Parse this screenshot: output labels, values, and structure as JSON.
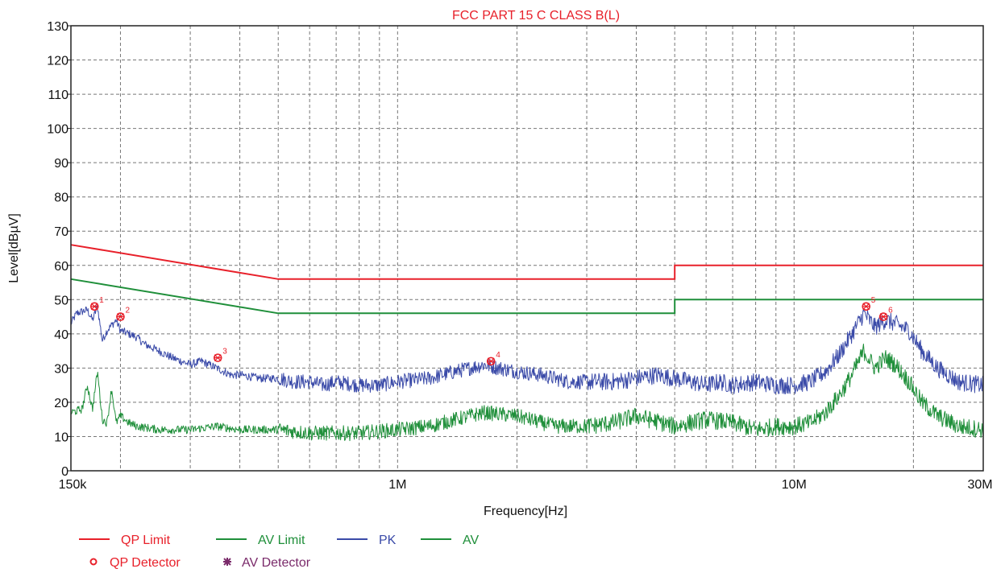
{
  "chart_data": {
    "type": "line",
    "title": "FCC PART 15 C CLASS B(L)",
    "xlabel": "Frequency[Hz]",
    "ylabel": "Level[dBµV]",
    "x_scale": "log",
    "xlim": [
      150000,
      30000000
    ],
    "ylim": [
      0,
      130
    ],
    "y_ticks": [
      0,
      10,
      20,
      30,
      40,
      50,
      60,
      70,
      80,
      90,
      100,
      110,
      120,
      130
    ],
    "x_tick_labels": [
      {
        "value": 150000,
        "label": "150k"
      },
      {
        "value": 1000000,
        "label": "1M"
      },
      {
        "value": 10000000,
        "label": "10M"
      },
      {
        "value": 30000000,
        "label": "30M"
      }
    ],
    "x_grid": [
      200000,
      300000,
      400000,
      500000,
      600000,
      700000,
      800000,
      900000,
      1000000,
      2000000,
      3000000,
      4000000,
      5000000,
      6000000,
      7000000,
      8000000,
      9000000,
      10000000,
      20000000
    ],
    "grid": true,
    "legend_placement": "bottom-left",
    "colors": {
      "qp_limit": "#e8202a",
      "av_limit": "#1f8f3a",
      "pk": "#3a4aa8",
      "av": "#1f8f3a",
      "title": "#e8202a",
      "marker": "#e8202a",
      "av_detector": "#7a2a6a"
    },
    "series": [
      {
        "key": "qp_limit",
        "name": "QP Limit",
        "type": "limit",
        "x": [
          150000,
          500000,
          500000,
          5000000,
          5000000,
          30000000
        ],
        "y": [
          66,
          56,
          56,
          56,
          60,
          60
        ]
      },
      {
        "key": "av_limit",
        "name": "AV Limit",
        "type": "limit",
        "x": [
          150000,
          500000,
          500000,
          5000000,
          5000000,
          30000000
        ],
        "y": [
          56,
          46,
          46,
          46,
          50,
          50
        ]
      },
      {
        "key": "pk",
        "name": "PK",
        "type": "trace",
        "x": [
          150000,
          155000,
          165000,
          170000,
          175000,
          180000,
          185000,
          195000,
          200000,
          210000,
          220000,
          230000,
          250000,
          270000,
          300000,
          320000,
          350000,
          380000,
          400000,
          450000,
          500000,
          550000,
          600000,
          650000,
          700000,
          800000,
          900000,
          1000000,
          1200000,
          1400000,
          1650000,
          1800000,
          2000000,
          2300000,
          2700000,
          3000000,
          3500000,
          4000000,
          4500000,
          5000000,
          5500000,
          6000000,
          6500000,
          7000000,
          8000000,
          9000000,
          10000000,
          11000000,
          12000000,
          13000000,
          14000000,
          15000000,
          16000000,
          17000000,
          18000000,
          19500000,
          21000000,
          23000000,
          26000000,
          30000000
        ],
        "y": [
          43,
          46,
          47,
          44,
          48,
          38,
          41,
          44,
          41,
          40,
          39,
          37,
          35,
          33,
          31,
          32,
          30,
          28,
          28,
          27,
          27,
          26,
          26,
          25,
          26,
          25,
          25,
          26,
          27,
          29,
          31,
          30,
          29,
          28,
          26,
          26,
          26,
          27,
          28,
          27,
          26,
          25,
          26,
          25,
          26,
          25,
          25,
          26,
          29,
          34,
          40,
          46,
          42,
          44,
          43,
          41,
          35,
          30,
          26,
          25
        ]
      },
      {
        "key": "av",
        "name": "AV",
        "type": "trace",
        "x": [
          150000,
          160000,
          165000,
          170000,
          175000,
          180000,
          185000,
          190000,
          195000,
          200000,
          210000,
          220000,
          250000,
          300000,
          350000,
          400000,
          500000,
          600000,
          700000,
          800000,
          1000000,
          1200000,
          1400000,
          1650000,
          2000000,
          2500000,
          3000000,
          3500000,
          4000000,
          5000000,
          6000000,
          7000000,
          8000000,
          9000000,
          10000000,
          11000000,
          12000000,
          13000000,
          14000000,
          15000000,
          16000000,
          17000000,
          18000000,
          19500000,
          21000000,
          23000000,
          26000000,
          30000000
        ],
        "y": [
          17,
          18,
          25,
          18,
          29,
          15,
          14,
          24,
          14,
          16,
          14,
          13,
          12,
          12,
          13,
          12,
          12,
          11,
          11,
          11,
          12,
          13,
          15,
          17,
          16,
          13,
          13,
          14,
          16,
          13,
          15,
          14,
          12,
          13,
          13,
          14,
          17,
          22,
          28,
          35,
          30,
          33,
          31,
          26,
          20,
          16,
          13,
          12
        ]
      }
    ],
    "markers": [
      {
        "label": "1",
        "x": 172000,
        "y": 48
      },
      {
        "label": "2",
        "x": 200000,
        "y": 45
      },
      {
        "label": "3",
        "x": 352000,
        "y": 33
      },
      {
        "label": "4",
        "x": 1720000,
        "y": 32
      },
      {
        "label": "5",
        "x": 15200000,
        "y": 48
      },
      {
        "label": "6",
        "x": 16800000,
        "y": 45
      }
    ],
    "legend": [
      {
        "key": "qp_limit",
        "label": "QP Limit",
        "symbol": "line"
      },
      {
        "key": "av_limit",
        "label": "AV Limit",
        "symbol": "line"
      },
      {
        "key": "pk",
        "label": "PK",
        "symbol": "line"
      },
      {
        "key": "av",
        "label": "AV",
        "symbol": "line"
      },
      {
        "key": "marker",
        "label": "QP Detector",
        "symbol": "circle"
      },
      {
        "key": "av_detector",
        "label": "AV Detector",
        "symbol": "star"
      }
    ]
  }
}
